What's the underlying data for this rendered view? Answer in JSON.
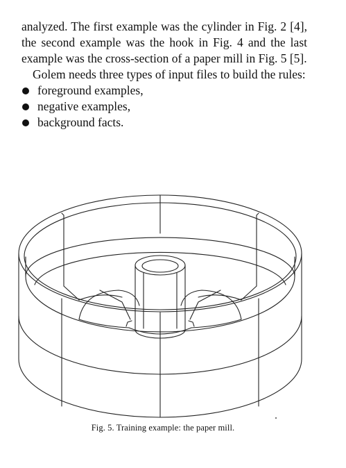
{
  "paragraphs": {
    "first": "analyzed. The first example was the cylinder in Fig. 2 [4], the second example was the hook in Fig. 4 and the last example was the cross-section of a paper mill in Fig. 5 [5].",
    "second": "Golem needs three types of input files to build the rules:"
  },
  "bullets": [
    "foreground examples,",
    "negative examples,",
    "background facts."
  ],
  "figure": {
    "caption": "Fig. 5. Training example: the paper mill."
  }
}
